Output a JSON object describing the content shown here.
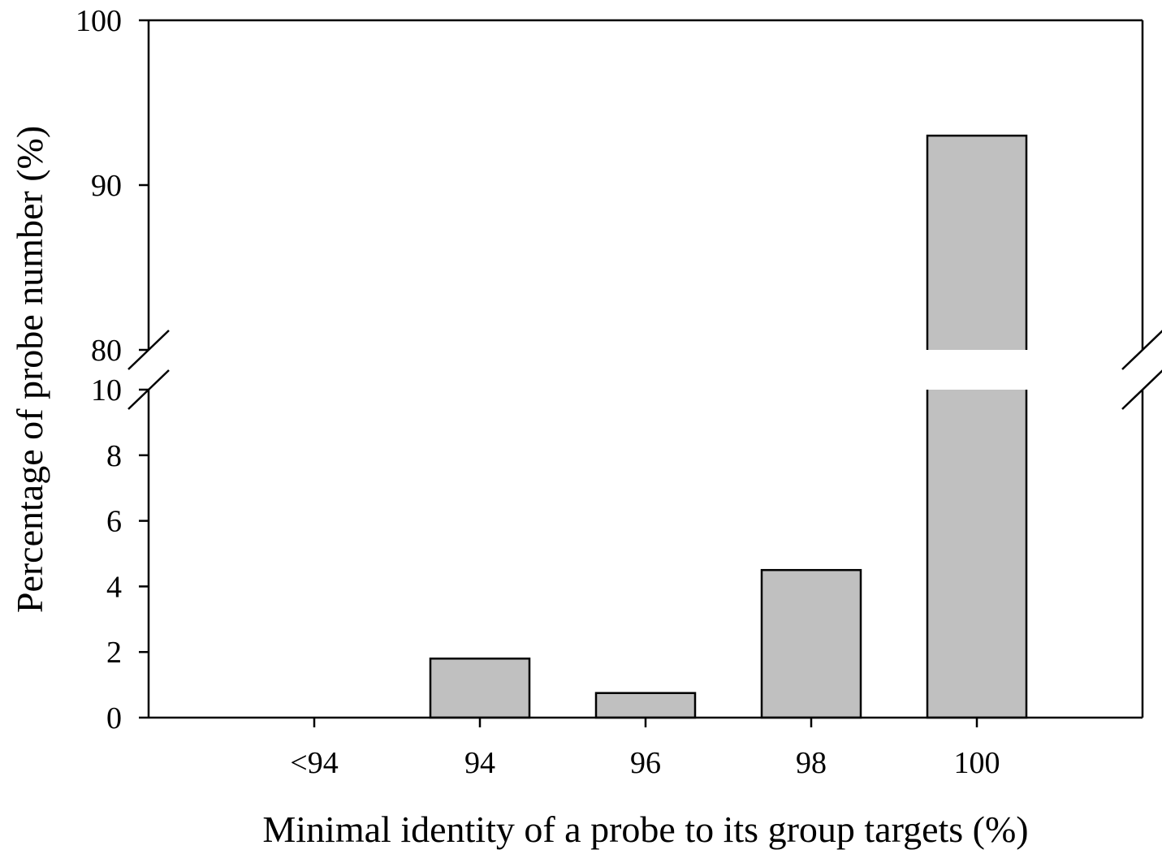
{
  "chart_data": {
    "type": "bar",
    "xlabel": "Minimal identity of a probe to its group targets (%)",
    "ylabel": "Percentage of probe number (%)",
    "categories": [
      "<94",
      "94",
      "96",
      "98",
      "100"
    ],
    "values": [
      0,
      1.8,
      0.75,
      4.5,
      93
    ],
    "y_axis_break": {
      "lower_segment": [
        0,
        10
      ],
      "upper_segment": [
        80,
        100
      ]
    },
    "y_ticks_lower": [
      "0",
      "2",
      "4",
      "6",
      "8",
      "10"
    ],
    "y_ticks_upper": [
      "80",
      "90",
      "100"
    ],
    "grid": false,
    "legend": "none",
    "colors": {
      "bar_fill": "#c0c0c0",
      "bar_stroke": "#000000",
      "axis": "#000000"
    }
  }
}
